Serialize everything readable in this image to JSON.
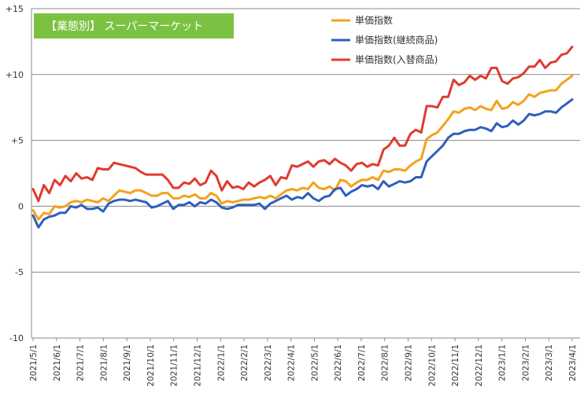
{
  "chart_data": {
    "type": "line",
    "title": "【業態別】 スーパーマーケット",
    "ylim": [
      -10,
      15
    ],
    "yticks": [
      "+15",
      "+10",
      "+5",
      "0",
      "-5",
      "-10"
    ],
    "ytick_values": [
      15,
      10,
      5,
      0,
      -5,
      -10
    ],
    "xtick_labels": [
      "2021/5/1",
      "2021/6/1",
      "2021/7/1",
      "2021/8/1",
      "2021/9/1",
      "2021/10/1",
      "2021/11/1",
      "2021/12/1",
      "2022/1/1",
      "2022/2/1",
      "2022/3/1",
      "2022/4/1",
      "2022/5/1",
      "2022/6/1",
      "2022/7/1",
      "2022/8/1",
      "2022/9/1",
      "2022/10/1",
      "2022/11/1",
      "2022/12/1",
      "2023/1/1",
      "2023/2/1",
      "2023/3/1",
      "2023/4/1"
    ],
    "grid": "horizontal",
    "legend_position": "top-right",
    "colors": {
      "title_bg": "#7cc242",
      "grid": "#888888"
    },
    "series": [
      {
        "name": "単価指数",
        "color": "#f4a11b",
        "values": [
          -0.3,
          -1.0,
          -0.5,
          -0.6,
          0.0,
          -0.1,
          0.0,
          0.3,
          0.4,
          0.3,
          0.5,
          0.4,
          0.3,
          0.6,
          0.4,
          0.8,
          1.2,
          1.1,
          1.0,
          1.2,
          1.2,
          1.0,
          0.8,
          0.8,
          1.0,
          1.0,
          0.6,
          0.6,
          0.8,
          0.7,
          0.9,
          0.6,
          0.6,
          1.0,
          0.8,
          0.2,
          0.4,
          0.3,
          0.4,
          0.5,
          0.5,
          0.6,
          0.7,
          0.6,
          0.8,
          0.6,
          0.9,
          1.2,
          1.3,
          1.2,
          1.4,
          1.3,
          1.8,
          1.4,
          1.3,
          1.5,
          1.2,
          2.0,
          1.9,
          1.5,
          1.8,
          2.0,
          2.0,
          2.2,
          2.0,
          2.7,
          2.6,
          2.8,
          2.8,
          2.7,
          3.1,
          3.4,
          3.6,
          5.1,
          5.4,
          5.6,
          6.1,
          6.6,
          7.2,
          7.1,
          7.4,
          7.5,
          7.3,
          7.6,
          7.4,
          7.3,
          8.0,
          7.4,
          7.5,
          7.9,
          7.7,
          8.0,
          8.5,
          8.3,
          8.6,
          8.7,
          8.8,
          8.8,
          9.3,
          9.6,
          9.9
        ]
      },
      {
        "name": "単価指数(継続商品)",
        "color": "#2e5fbe",
        "values": [
          -0.7,
          -1.6,
          -1.0,
          -0.8,
          -0.7,
          -0.5,
          -0.5,
          0.0,
          -0.1,
          0.1,
          -0.2,
          -0.2,
          -0.1,
          -0.4,
          0.2,
          0.4,
          0.5,
          0.5,
          0.4,
          0.5,
          0.4,
          0.3,
          -0.1,
          0.0,
          0.2,
          0.4,
          -0.2,
          0.1,
          0.1,
          0.3,
          0.0,
          0.3,
          0.2,
          0.5,
          0.3,
          -0.1,
          -0.2,
          -0.1,
          0.1,
          0.1,
          0.1,
          0.1,
          0.2,
          -0.2,
          0.2,
          0.4,
          0.6,
          0.8,
          0.5,
          0.7,
          0.6,
          1.0,
          0.6,
          0.4,
          0.7,
          0.8,
          1.3,
          1.4,
          0.8,
          1.1,
          1.3,
          1.6,
          1.5,
          1.6,
          1.3,
          1.9,
          1.5,
          1.7,
          1.9,
          1.8,
          1.9,
          2.2,
          2.2,
          3.4,
          3.8,
          4.2,
          4.6,
          5.2,
          5.5,
          5.5,
          5.7,
          5.8,
          5.8,
          6.0,
          5.9,
          5.7,
          6.3,
          6.0,
          6.1,
          6.5,
          6.2,
          6.5,
          7.0,
          6.9,
          7.0,
          7.2,
          7.2,
          7.1,
          7.5,
          7.8,
          8.1
        ]
      },
      {
        "name": "単価指数(入替商品)",
        "color": "#e03b2f",
        "values": [
          1.3,
          0.4,
          1.6,
          1.0,
          2.0,
          1.6,
          2.3,
          1.9,
          2.5,
          2.1,
          2.2,
          2.0,
          2.9,
          2.8,
          2.8,
          3.3,
          3.2,
          3.1,
          3.0,
          2.9,
          2.6,
          2.4,
          2.4,
          2.4,
          2.4,
          2.0,
          1.4,
          1.4,
          1.8,
          1.7,
          2.1,
          1.6,
          1.8,
          2.7,
          2.3,
          1.2,
          1.9,
          1.4,
          1.5,
          1.3,
          1.8,
          1.5,
          1.8,
          2.0,
          2.3,
          1.6,
          2.2,
          2.1,
          3.1,
          3.0,
          3.2,
          3.4,
          3.0,
          3.4,
          3.5,
          3.2,
          3.6,
          3.3,
          3.1,
          2.7,
          3.2,
          3.3,
          3.0,
          3.2,
          3.1,
          4.3,
          4.6,
          5.2,
          4.6,
          4.6,
          5.5,
          5.8,
          5.6,
          7.6,
          7.6,
          7.5,
          8.3,
          8.3,
          9.6,
          9.2,
          9.4,
          9.9,
          9.6,
          9.9,
          9.7,
          10.5,
          10.5,
          9.5,
          9.3,
          9.7,
          9.8,
          10.1,
          10.6,
          10.6,
          11.1,
          10.5,
          10.9,
          11.0,
          11.5,
          11.6,
          12.1
        ]
      }
    ]
  }
}
